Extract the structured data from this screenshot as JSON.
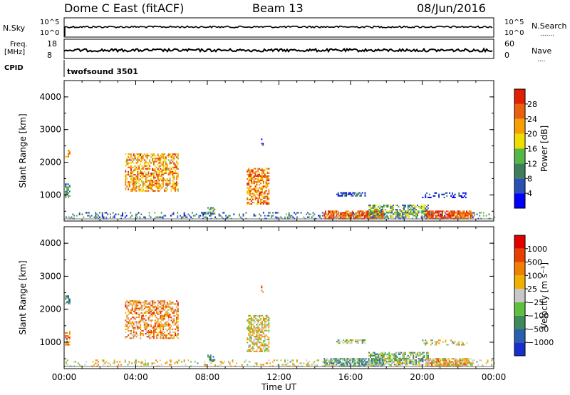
{
  "header": {
    "station": "Dome C East (fitACF)",
    "beam": "Beam 13",
    "date": "08/Jun/2016"
  },
  "strip_panels": {
    "nsky": {
      "left_label": "N.Sky",
      "left_ticks": [
        "10^5",
        "10^0"
      ],
      "right_label": "N.Search",
      "right_ticks": [
        "10^5",
        "10^0"
      ],
      "right_legend": "......."
    },
    "freq": {
      "left_label_line1": "Freq.",
      "left_label_line2": "[MHz]",
      "left_ticks": [
        "18",
        "8"
      ],
      "right_label": "Nave",
      "right_ticks": [
        "60",
        "0"
      ],
      "right_legend": "...."
    },
    "cpid": {
      "label": "CPID",
      "program": "twofsound 3501"
    }
  },
  "chart_data": [
    {
      "type": "heatmap",
      "panel": "power",
      "ylabel": "Slant Range [km]",
      "ylim": [
        200,
        4500
      ],
      "y_ticks": [
        "1000",
        "2000",
        "3000",
        "4000"
      ],
      "x_ticks": [
        "00:00",
        "04:00",
        "08:00",
        "12:00",
        "16:00",
        "20:00",
        "00:00"
      ],
      "xlim_hours": [
        0,
        24
      ],
      "colorbar": {
        "label": "Power [dB]",
        "ticks": [
          "4",
          "8",
          "12",
          "16",
          "20",
          "24",
          "28"
        ],
        "colors": [
          "#0000ff",
          "#2a4fb5",
          "#3d7f5a",
          "#55b844",
          "#eedd00",
          "#f5a000",
          "#e86010",
          "#e02000"
        ]
      },
      "clusters": [
        {
          "t0": 0.0,
          "t1": 24.0,
          "r0": 250,
          "r1": 450,
          "level": 0.25,
          "density": 0.22
        },
        {
          "t0": 0.05,
          "t1": 0.35,
          "r0": 2150,
          "r1": 2350,
          "level": 0.75,
          "density": 0.7
        },
        {
          "t0": 0.05,
          "t1": 0.35,
          "r0": 900,
          "r1": 1350,
          "level": 0.3,
          "density": 0.7
        },
        {
          "t0": 3.4,
          "t1": 6.4,
          "r0": 1100,
          "r1": 2250,
          "level": 0.7,
          "density": 0.55
        },
        {
          "t0": 8.0,
          "t1": 8.4,
          "r0": 400,
          "r1": 600,
          "level": 0.4,
          "density": 0.5
        },
        {
          "t0": 10.2,
          "t1": 11.4,
          "r0": 700,
          "r1": 1800,
          "level": 0.75,
          "density": 0.6
        },
        {
          "t0": 11.0,
          "t1": 11.1,
          "r0": 2500,
          "r1": 2700,
          "level": 0.3,
          "density": 0.5
        },
        {
          "t0": 14.5,
          "t1": 17.8,
          "r0": 250,
          "r1": 500,
          "level": 0.85,
          "density": 0.75
        },
        {
          "t0": 15.2,
          "t1": 16.8,
          "r0": 950,
          "r1": 1080,
          "level": 0.2,
          "density": 0.6
        },
        {
          "t0": 17.0,
          "t1": 20.3,
          "r0": 300,
          "r1": 700,
          "level": 0.4,
          "density": 0.6
        },
        {
          "t0": 20.2,
          "t1": 22.8,
          "r0": 250,
          "r1": 500,
          "level": 0.9,
          "density": 0.75
        },
        {
          "t0": 20.0,
          "t1": 22.5,
          "r0": 900,
          "r1": 1080,
          "level": 0.15,
          "density": 0.3
        }
      ]
    },
    {
      "type": "heatmap",
      "panel": "velocity",
      "ylabel": "Slant Range [km]",
      "ylim": [
        200,
        4500
      ],
      "y_ticks": [
        "1000",
        "2000",
        "3000",
        "4000"
      ],
      "x_ticks": [
        "00:00",
        "04:00",
        "08:00",
        "12:00",
        "16:00",
        "20:00",
        "00:00"
      ],
      "xlabel": "Time UT",
      "xlim_hours": [
        0,
        24
      ],
      "colorbar": {
        "label": "Velocity [m s⁻¹]",
        "ticks": [
          "1000",
          "500",
          "100",
          "25",
          "−25",
          "−100",
          "−500",
          "−1000"
        ],
        "colors": [
          "#1a2ecc",
          "#2a5fb0",
          "#3f8a5a",
          "#5fc040",
          "#c8c8c8",
          "#f0b000",
          "#f08000",
          "#e84000",
          "#e00000"
        ]
      },
      "clusters": [
        {
          "t0": 0.0,
          "t1": 24.0,
          "r0": 250,
          "r1": 450,
          "level": 0.55,
          "density": 0.22
        },
        {
          "t0": 0.05,
          "t1": 0.35,
          "r0": 2150,
          "r1": 2400,
          "level": 0.2,
          "density": 0.7
        },
        {
          "t0": 0.05,
          "t1": 0.35,
          "r0": 900,
          "r1": 1350,
          "level": 0.7,
          "density": 0.7
        },
        {
          "t0": 3.4,
          "t1": 6.4,
          "r0": 1100,
          "r1": 2250,
          "level": 0.68,
          "density": 0.55
        },
        {
          "t0": 8.0,
          "t1": 8.4,
          "r0": 400,
          "r1": 600,
          "level": 0.25,
          "density": 0.5
        },
        {
          "t0": 10.2,
          "t1": 11.4,
          "r0": 700,
          "r1": 1800,
          "level": 0.55,
          "density": 0.6
        },
        {
          "t0": 11.0,
          "t1": 11.1,
          "r0": 2500,
          "r1": 2700,
          "level": 0.7,
          "density": 0.5
        },
        {
          "t0": 14.5,
          "t1": 17.8,
          "r0": 250,
          "r1": 500,
          "level": 0.35,
          "density": 0.75
        },
        {
          "t0": 15.2,
          "t1": 16.8,
          "r0": 950,
          "r1": 1080,
          "level": 0.45,
          "density": 0.6
        },
        {
          "t0": 17.0,
          "t1": 20.3,
          "r0": 300,
          "r1": 700,
          "level": 0.4,
          "density": 0.6
        },
        {
          "t0": 20.2,
          "t1": 22.8,
          "r0": 250,
          "r1": 500,
          "level": 0.6,
          "density": 0.75
        },
        {
          "t0": 20.0,
          "t1": 22.5,
          "r0": 900,
          "r1": 1080,
          "level": 0.5,
          "density": 0.3
        }
      ]
    }
  ]
}
